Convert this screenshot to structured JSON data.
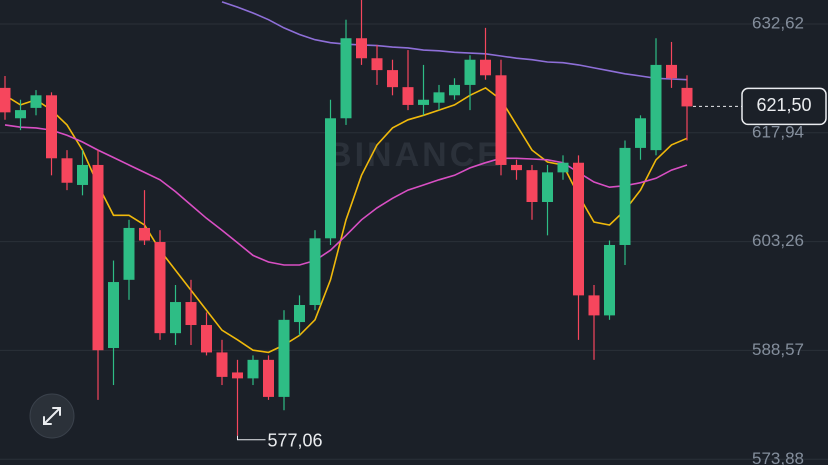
{
  "chart_data": {
    "type": "candlestick",
    "watermark": "BINANCE",
    "grid": true,
    "ylim": [
      573.11,
      635.86
    ],
    "yticks": [
      {
        "value": 573.88,
        "label": "573,88"
      },
      {
        "value": 588.57,
        "label": "588,57"
      },
      {
        "value": 603.26,
        "label": "603,26"
      },
      {
        "value": 617.94,
        "label": "617,94"
      },
      {
        "value": 632.62,
        "label": "632,62"
      }
    ],
    "up_color": "#2ebd85",
    "down_color": "#f6465d",
    "candles": {
      "open": [
        624.0,
        619.9,
        621.3,
        623.0,
        614.5,
        610.9,
        613.6,
        588.9,
        598.1,
        605.1,
        603.2,
        590.9,
        595.1,
        592.0,
        588.3,
        585.6,
        584.8,
        587.3,
        582.3,
        592.4,
        594.7,
        603.7,
        619.9,
        630.7,
        628.0,
        626.4,
        624.1,
        621.7,
        622.0,
        623.0,
        624.4,
        627.8,
        625.7,
        613.6,
        612.9,
        608.6,
        612.6,
        613.9,
        596.0,
        593.3,
        602.8,
        615.9,
        615.6,
        627.1,
        624.0
      ],
      "high": [
        625.6,
        622.4,
        623.7,
        623.4,
        615.6,
        615.6,
        615.6,
        600.7,
        606.2,
        610.2,
        604.8,
        597.4,
        598.1,
        593.7,
        590.0,
        587.3,
        587.9,
        587.9,
        594.0,
        596.0,
        604.8,
        622.4,
        633.2,
        635.9,
        629.8,
        627.8,
        629.1,
        627.1,
        624.4,
        625.3,
        628.4,
        632.1,
        627.8,
        614.3,
        613.6,
        613.6,
        614.9,
        614.9,
        597.4,
        603.4,
        616.9,
        620.3,
        630.7,
        630.2,
        625.7
      ],
      "low": [
        619.7,
        618.3,
        620.3,
        612.2,
        610.2,
        609.5,
        581.9,
        583.9,
        595.4,
        602.8,
        590.0,
        589.3,
        589.3,
        587.9,
        583.9,
        577.06,
        583.9,
        581.9,
        580.5,
        590.6,
        594.0,
        602.8,
        619.0,
        627.1,
        624.4,
        623.0,
        621.0,
        620.3,
        621.0,
        622.4,
        621.0,
        625.1,
        612.2,
        611.6,
        606.2,
        604.1,
        611.6,
        590.0,
        587.3,
        592.7,
        600.1,
        614.3,
        614.9,
        624.0,
        616.9
      ],
      "close": [
        620.7,
        621.0,
        623.0,
        614.5,
        611.2,
        613.6,
        588.6,
        597.8,
        605.1,
        603.4,
        590.9,
        595.1,
        592.0,
        588.3,
        585.0,
        584.8,
        587.3,
        582.3,
        592.7,
        594.7,
        603.7,
        619.9,
        630.7,
        628.0,
        626.4,
        624.1,
        621.7,
        622.4,
        623.4,
        624.4,
        627.8,
        625.7,
        613.6,
        612.9,
        608.6,
        612.6,
        613.9,
        596.0,
        593.3,
        602.8,
        615.9,
        619.9,
        627.1,
        625.3,
        621.5
      ]
    },
    "lines": [
      {
        "color": "#f0b90b",
        "values": [
          623.0,
          621.7,
          622.4,
          621.0,
          619.0,
          615.6,
          610.9,
          606.8,
          606.8,
          605.5,
          602.1,
          599.4,
          596.7,
          594.0,
          591.3,
          590.0,
          588.6,
          588.3,
          589.3,
          590.6,
          592.7,
          598.1,
          606.2,
          612.2,
          616.3,
          618.6,
          619.7,
          620.3,
          621.0,
          621.7,
          623.0,
          624.0,
          622.4,
          619.0,
          615.6,
          614.0,
          613.6,
          609.5,
          605.9,
          605.5,
          607.5,
          610.2,
          614.3,
          616.3,
          617.2
        ]
      },
      {
        "color": "#d94fc4",
        "values": [
          619.0,
          618.7,
          618.6,
          618.3,
          617.6,
          616.7,
          615.6,
          614.6,
          613.6,
          612.6,
          611.6,
          610.0,
          608.2,
          606.4,
          604.8,
          603.1,
          601.4,
          600.5,
          600.1,
          600.1,
          600.7,
          602.1,
          604.1,
          606.2,
          607.8,
          609.1,
          610.2,
          610.9,
          611.6,
          612.2,
          613.2,
          613.9,
          614.5,
          614.5,
          614.4,
          614.3,
          613.9,
          612.6,
          611.3,
          610.6,
          610.8,
          611.2,
          611.8,
          612.9,
          613.6
        ]
      },
      {
        "color": "#8e6fd8",
        "values": [
          null,
          null,
          null,
          null,
          null,
          null,
          null,
          null,
          null,
          null,
          null,
          null,
          null,
          null,
          635.6,
          634.9,
          634.1,
          633.2,
          632.1,
          631.2,
          630.5,
          630.1,
          629.9,
          629.8,
          629.7,
          629.5,
          629.4,
          629.1,
          629.0,
          628.8,
          628.7,
          628.6,
          628.3,
          628.0,
          627.8,
          627.5,
          627.4,
          627.1,
          626.7,
          626.3,
          625.9,
          625.6,
          625.3,
          625.2,
          625.1
        ]
      }
    ],
    "last_price": {
      "value": 621.5,
      "label": "621,50"
    },
    "low_label": {
      "value": 577.06,
      "label": "577,06"
    }
  }
}
